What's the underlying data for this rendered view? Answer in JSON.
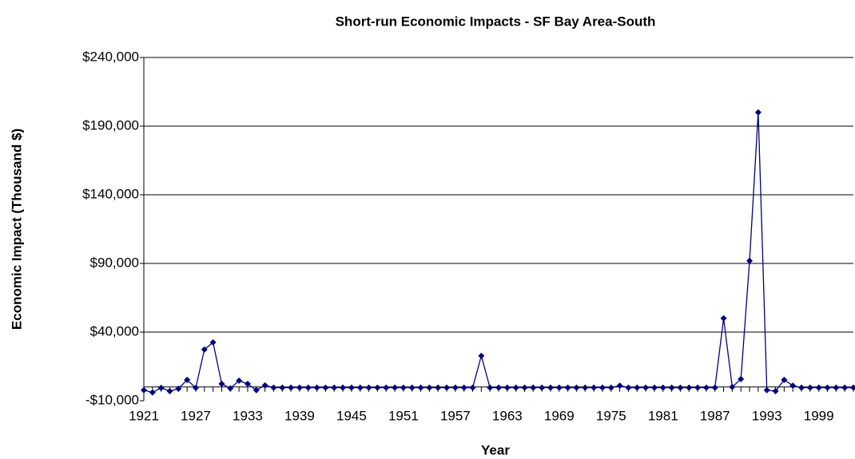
{
  "chart_data": {
    "type": "line",
    "title": "Short-run Economic Impacts - SF Bay Area-South",
    "xlabel": "Year",
    "ylabel": "Economic Impact (Thousand $)",
    "categories": [
      "1921",
      null,
      null,
      null,
      null,
      null,
      "1927",
      null,
      null,
      null,
      null,
      null,
      "1933",
      null,
      null,
      null,
      null,
      null,
      "1939",
      null,
      null,
      null,
      null,
      null,
      "1945",
      null,
      null,
      null,
      null,
      null,
      "1951",
      null,
      null,
      null,
      null,
      null,
      "1957",
      null,
      null,
      null,
      null,
      null,
      "1963",
      null,
      null,
      null,
      null,
      null,
      "1969",
      null,
      null,
      null,
      null,
      null,
      "1975",
      null,
      null,
      null,
      null,
      null,
      "1981",
      null,
      null,
      null,
      null,
      null,
      "1987",
      null,
      null,
      null,
      null,
      null,
      "1993",
      null,
      null,
      null,
      null,
      null,
      "1999",
      null,
      null,
      null,
      null
    ],
    "series": [
      {
        "name": "Economic Impact",
        "color": "#000080",
        "values": [
          -2300,
          -4000,
          -600,
          -3000,
          -1200,
          5200,
          -600,
          27300,
          32500,
          2300,
          -1000,
          4600,
          2300,
          -2300,
          1200,
          -500,
          -500,
          -500,
          -500,
          -500,
          -500,
          -500,
          -500,
          -500,
          -500,
          -500,
          -500,
          -500,
          -500,
          -500,
          -500,
          -500,
          -500,
          -500,
          -500,
          -500,
          -500,
          -500,
          -500,
          22700,
          -500,
          -500,
          -500,
          -500,
          -500,
          -500,
          -500,
          -500,
          -500,
          -500,
          -500,
          -500,
          -500,
          -500,
          -500,
          1000,
          -500,
          -500,
          -500,
          -500,
          -500,
          -500,
          -500,
          -500,
          -500,
          -500,
          -500,
          50000,
          0,
          5800,
          91900,
          200000,
          -2300,
          -3000,
          5200,
          1000,
          -500,
          -500,
          -500,
          -500,
          -500,
          -500,
          -500
        ]
      }
    ],
    "ylim": [
      -10000,
      240000
    ],
    "yticks": [
      {
        "value": -10000,
        "label": "-$10,000"
      },
      {
        "value": 40000,
        "label": "$40,000"
      },
      {
        "value": 90000,
        "label": "$90,000"
      },
      {
        "value": 140000,
        "label": "$140,000"
      },
      {
        "value": 190000,
        "label": "$190,000"
      },
      {
        "value": 240000,
        "label": "$240,000"
      }
    ],
    "grid": true
  }
}
